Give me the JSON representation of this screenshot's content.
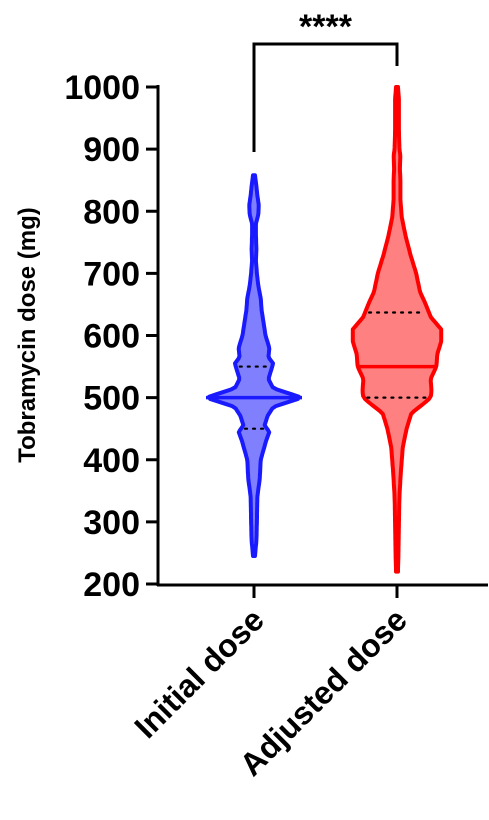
{
  "chart_data": {
    "type": "violin",
    "title": "",
    "ylabel": "Tobramycin dose (mg)",
    "ylim": [
      200,
      1000
    ],
    "yticks": [
      200,
      300,
      400,
      500,
      600,
      700,
      800,
      900,
      1000
    ],
    "ytick_labels": [
      "200",
      "300",
      "400",
      "500",
      "600",
      "700",
      "800",
      "900",
      "1000"
    ],
    "categories": [
      "Initial dose",
      "Adjusted dose"
    ],
    "series": [
      {
        "category": "Initial dose",
        "color": "#1a1aff",
        "fill": "#8080ff",
        "min": 245,
        "max": 858,
        "median": 500,
        "q1": 450,
        "q3": 550,
        "density": [
          [
            245,
            0.02
          ],
          [
            270,
            0.05
          ],
          [
            300,
            0.06
          ],
          [
            340,
            0.07
          ],
          [
            370,
            0.12
          ],
          [
            400,
            0.14
          ],
          [
            430,
            0.25
          ],
          [
            445,
            0.32
          ],
          [
            455,
            0.22
          ],
          [
            470,
            0.28
          ],
          [
            485,
            0.4
          ],
          [
            500,
            1.0
          ],
          [
            515,
            0.4
          ],
          [
            530,
            0.3
          ],
          [
            545,
            0.36
          ],
          [
            555,
            0.4
          ],
          [
            565,
            0.3
          ],
          [
            580,
            0.32
          ],
          [
            600,
            0.24
          ],
          [
            620,
            0.2
          ],
          [
            640,
            0.16
          ],
          [
            660,
            0.14
          ],
          [
            680,
            0.09
          ],
          [
            700,
            0.06
          ],
          [
            720,
            0.04
          ],
          [
            740,
            0.05
          ],
          [
            760,
            0.04
          ],
          [
            780,
            0.04
          ],
          [
            795,
            0.09
          ],
          [
            810,
            0.1
          ],
          [
            825,
            0.07
          ],
          [
            840,
            0.05
          ],
          [
            858,
            0.02
          ]
        ]
      },
      {
        "category": "Adjusted dose",
        "color": "#ff0000",
        "fill": "#ff8080",
        "min": 220,
        "max": 1000,
        "median": 550,
        "q1": 500,
        "q3": 637,
        "density": [
          [
            220,
            0.02
          ],
          [
            250,
            0.03
          ],
          [
            300,
            0.04
          ],
          [
            340,
            0.05
          ],
          [
            380,
            0.08
          ],
          [
            420,
            0.12
          ],
          [
            450,
            0.2
          ],
          [
            475,
            0.3
          ],
          [
            490,
            0.55
          ],
          [
            500,
            0.7
          ],
          [
            510,
            0.72
          ],
          [
            530,
            0.7
          ],
          [
            550,
            0.82
          ],
          [
            570,
            0.84
          ],
          [
            590,
            0.92
          ],
          [
            610,
            0.92
          ],
          [
            630,
            0.7
          ],
          [
            650,
            0.6
          ],
          [
            670,
            0.48
          ],
          [
            700,
            0.4
          ],
          [
            730,
            0.28
          ],
          [
            760,
            0.18
          ],
          [
            790,
            0.1
          ],
          [
            820,
            0.07
          ],
          [
            850,
            0.07
          ],
          [
            870,
            0.06
          ],
          [
            890,
            0.07
          ],
          [
            900,
            0.05
          ],
          [
            930,
            0.04
          ],
          [
            960,
            0.04
          ],
          [
            980,
            0.04
          ],
          [
            1000,
            0.02
          ]
        ]
      }
    ],
    "significance": {
      "label": "****",
      "between": [
        "Initial dose",
        "Adjusted dose"
      ],
      "y": 980
    },
    "grid": false,
    "legend": "none"
  }
}
